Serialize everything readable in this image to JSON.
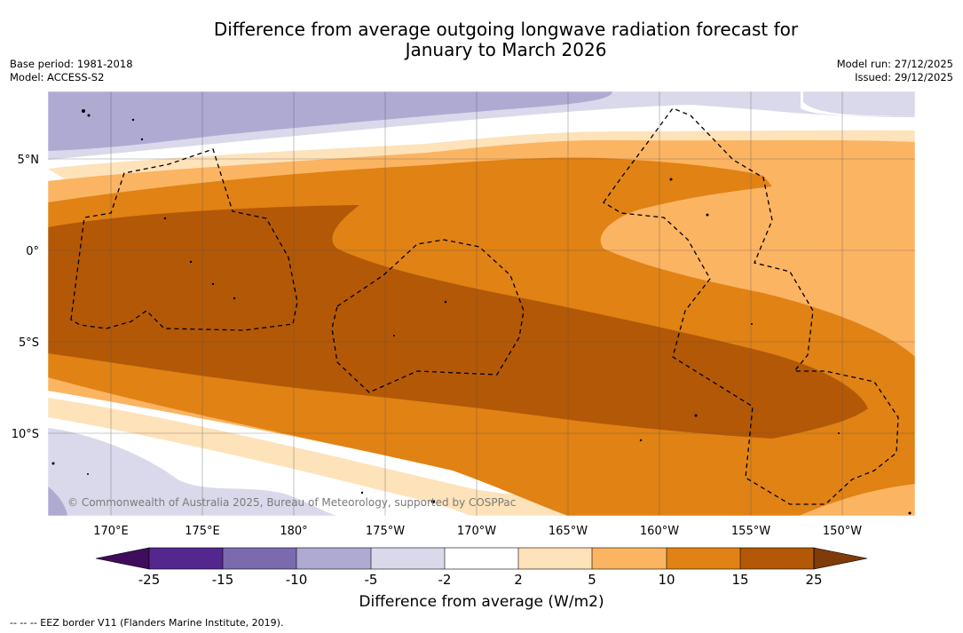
{
  "title": {
    "line1": "Difference from average outgoing longwave radiation forecast for",
    "line2": "January to March 2026"
  },
  "meta_left": {
    "base_period": "Base period: 1981-2018",
    "model": "Model: ACCESS-S2"
  },
  "meta_right": {
    "model_run": "Model run: 27/12/2025",
    "issued": "Issued: 29/12/2025"
  },
  "copyright": "© Commonwealth of Australia 2025, Bureau of Meteorology, supported by COSPPac",
  "lat_labels": [
    "5°N",
    "0°",
    "5°S",
    "10°S"
  ],
  "lon_labels": [
    "170°E",
    "175°E",
    "180°",
    "175°W",
    "170°W",
    "165°W",
    "160°W",
    "155°W",
    "150°W"
  ],
  "colorbar": {
    "title": "Difference from average (W/m2)",
    "ticks": [
      "-25",
      "-15",
      "-10",
      "-5",
      "-2",
      "2",
      "5",
      "10",
      "15",
      "25"
    ],
    "colors": [
      "#3f0d5c",
      "#54278f",
      "#7a6aae",
      "#afaad2",
      "#d9d9eb",
      "#ffffff",
      "#fee2b9",
      "#fbb462",
      "#e08214",
      "#b35806",
      "#7f3b08"
    ]
  },
  "footer": "--  --  -- EEZ border V11 (Flanders Marine Institute, 2019).",
  "colors": {
    "c_m10": "#afaad2",
    "c_m5": "#d9d9eb",
    "c_0": "#ffffff",
    "c_p2": "#fee2b9",
    "c_p5": "#fbb462",
    "c_p10": "#e08214",
    "c_p15": "#b35806"
  }
}
